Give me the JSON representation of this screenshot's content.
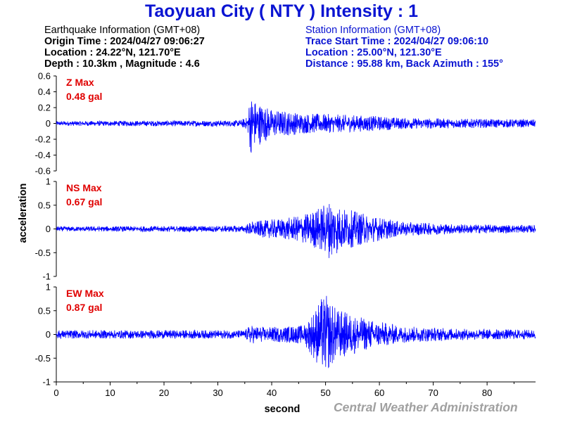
{
  "title": "Taoyuan City ( NTY ) Intensity : 1",
  "earthquake": {
    "header": "Earthquake Information  (GMT+08)",
    "origin_time": "Origin Time : 2024/04/27 09:06:27",
    "location": "Location : 24.22°N, 121.70°E",
    "depth_magnitude": "Depth : 10.3km , Magnitude : 4.6"
  },
  "station": {
    "header": "Station Information  (GMT+08)",
    "trace_start": "Trace Start Time : 2024/04/27 09:06:10",
    "location": "Location : 25.00°N, 121.30°E",
    "distance_azimuth": "Distance : 95.88 km, Back Azimuth : 155°"
  },
  "credit": "Central Weather Administration",
  "colors": {
    "title": "#0a14d2",
    "trace": "#0000ff",
    "max_label": "#e00000",
    "credit": "#a0a0a0"
  },
  "chart_data": {
    "type": "line",
    "xlabel": "second",
    "ylabel": "acceleration",
    "xlim": [
      0,
      89
    ],
    "x_ticks": [
      0,
      10,
      20,
      30,
      40,
      50,
      60,
      70,
      80
    ],
    "x_ticklabels": [
      "0",
      "10",
      "20",
      "30",
      "40",
      "50",
      "60",
      "70",
      "80"
    ],
    "panels": [
      {
        "name": "Z",
        "max_label": "Z Max",
        "max_value": "0.48 gal",
        "ylim": [
          -0.6,
          0.6
        ],
        "y_ticks": [
          -0.6,
          -0.4,
          -0.2,
          0,
          0.2,
          0.4,
          0.6
        ],
        "y_ticklabels": [
          "-0.6",
          "-0.4",
          "-0.2",
          "0",
          "0.2",
          "0.4",
          "0.6"
        ],
        "envelope": [
          [
            0,
            0.03
          ],
          [
            34,
            0.04
          ],
          [
            35.5,
            0.08
          ],
          [
            36,
            0.4
          ],
          [
            37,
            0.3
          ],
          [
            40,
            0.18
          ],
          [
            46,
            0.13
          ],
          [
            50,
            0.12
          ],
          [
            58,
            0.1
          ],
          [
            65,
            0.07
          ],
          [
            75,
            0.06
          ],
          [
            89,
            0.05
          ]
        ]
      },
      {
        "name": "NS",
        "max_label": "NS Max",
        "max_value": "0.67 gal",
        "ylim": [
          -1,
          1
        ],
        "y_ticks": [
          -1,
          -0.5,
          0,
          0.5,
          1
        ],
        "y_ticklabels": [
          "-1",
          "-0.5",
          "0",
          "0.5",
          "1"
        ],
        "envelope": [
          [
            0,
            0.05
          ],
          [
            35,
            0.07
          ],
          [
            36,
            0.15
          ],
          [
            40,
            0.2
          ],
          [
            44,
            0.25
          ],
          [
            47,
            0.35
          ],
          [
            50,
            0.55
          ],
          [
            51,
            0.65
          ],
          [
            53,
            0.45
          ],
          [
            58,
            0.3
          ],
          [
            64,
            0.15
          ],
          [
            75,
            0.1
          ],
          [
            89,
            0.08
          ]
        ]
      },
      {
        "name": "EW",
        "max_label": "EW Max",
        "max_value": "0.87 gal",
        "ylim": [
          -1,
          1
        ],
        "y_ticks": [
          -1,
          -0.5,
          0,
          0.5,
          1
        ],
        "y_ticklabels": [
          "-1",
          "-0.5",
          "0",
          "0.5",
          "1"
        ],
        "envelope": [
          [
            0,
            0.09
          ],
          [
            35,
            0.09
          ],
          [
            36,
            0.2
          ],
          [
            39,
            0.15
          ],
          [
            46,
            0.2
          ],
          [
            48,
            0.55
          ],
          [
            49,
            0.75
          ],
          [
            50,
            0.85
          ],
          [
            52,
            0.55
          ],
          [
            57,
            0.35
          ],
          [
            64,
            0.18
          ],
          [
            75,
            0.12
          ],
          [
            89,
            0.1
          ]
        ]
      }
    ]
  }
}
